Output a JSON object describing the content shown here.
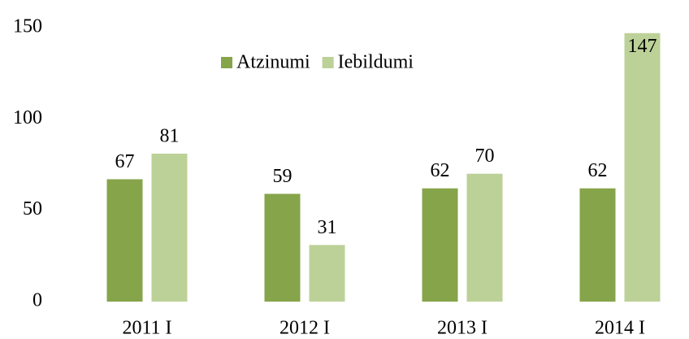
{
  "chart_data": {
    "type": "bar",
    "categories": [
      "2011 I",
      "2012 I",
      "2013 I",
      "2014 I"
    ],
    "series": [
      {
        "name": "Atzinumi",
        "color": "#86a44a",
        "values": [
          67,
          59,
          62,
          62
        ]
      },
      {
        "name": "Iebildumi",
        "color": "#bcd197",
        "values": [
          81,
          31,
          70,
          147
        ]
      }
    ],
    "ylim": [
      0,
      150
    ],
    "yticks": [
      0,
      50,
      100,
      150
    ],
    "grid": false,
    "legend": "top"
  }
}
